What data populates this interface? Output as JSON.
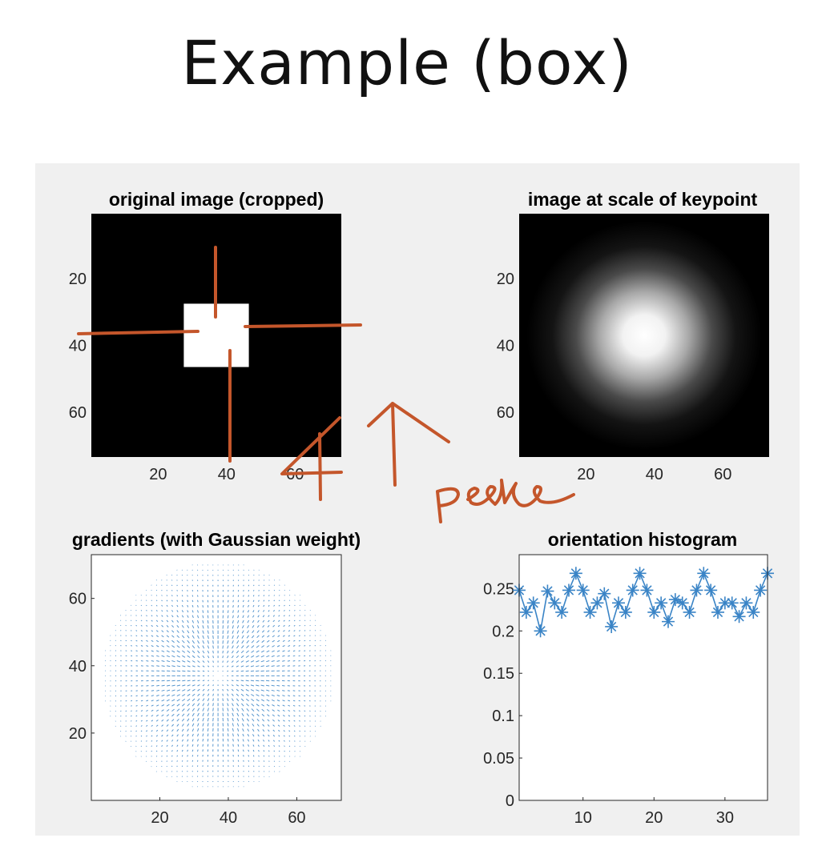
{
  "slide": {
    "title": "Example  (box)"
  },
  "annotation": {
    "handwritten_text": "peak"
  },
  "colors": {
    "panel_bg": "#f0f0f0",
    "axes_bg": "#ffffff",
    "series_blue": "#3a84c6",
    "ink_orange": "#c4562b"
  },
  "chart_data": [
    {
      "id": "original",
      "type": "heatmap",
      "title": "original image (cropped)",
      "colormap": "gray",
      "xlim": [
        0.5,
        73.5
      ],
      "ylim": [
        0.5,
        73.5
      ],
      "y_reversed": true,
      "xticks": [
        20,
        40,
        60
      ],
      "xtick_labels": [
        "20",
        "40",
        "60"
      ],
      "yticks": [
        20,
        40,
        60
      ],
      "ytick_labels": [
        "20",
        "40",
        "60"
      ],
      "background_value": 0,
      "box": {
        "x_range": [
          27.5,
          46.5
        ],
        "y_range": [
          27.5,
          46.5
        ],
        "value": 1
      }
    },
    {
      "id": "scaled",
      "type": "heatmap",
      "title": "image at scale of keypoint",
      "colormap": "gray",
      "xlim": [
        0.5,
        73.5
      ],
      "ylim": [
        0.5,
        73.5
      ],
      "y_reversed": true,
      "xticks": [
        20,
        40,
        60
      ],
      "xtick_labels": [
        "20",
        "40",
        "60"
      ],
      "yticks": [
        20,
        40,
        60
      ],
      "ytick_labels": [
        "20",
        "40",
        "60"
      ],
      "blob": {
        "center": [
          37,
          37
        ],
        "peak_value": 1
      }
    },
    {
      "id": "gradients",
      "type": "quiver",
      "title": "gradients (with Gaussian weight)",
      "xlim": [
        0,
        73
      ],
      "ylim": [
        0,
        73
      ],
      "xticks": [
        20,
        40,
        60
      ],
      "xtick_labels": [
        "20",
        "40",
        "60"
      ],
      "yticks": [
        20,
        40,
        60
      ],
      "ytick_labels": [
        "20",
        "40",
        "60"
      ],
      "center": [
        37,
        37
      ],
      "pattern": "radial"
    },
    {
      "id": "histogram",
      "type": "line",
      "title": "orientation histogram",
      "marker": "asterisk",
      "xlim": [
        1,
        36
      ],
      "ylim": [
        0,
        0.29
      ],
      "xticks": [
        10,
        20,
        30
      ],
      "xtick_labels": [
        "10",
        "20",
        "30"
      ],
      "yticks": [
        0,
        0.05,
        0.1,
        0.15,
        0.2,
        0.25
      ],
      "ytick_labels": [
        "0",
        "0.05",
        "0.1",
        "0.15",
        "0.2",
        "0.25"
      ],
      "x": [
        1,
        2,
        3,
        4,
        5,
        6,
        7,
        8,
        9,
        10,
        11,
        12,
        13,
        14,
        15,
        16,
        17,
        18,
        19,
        20,
        21,
        22,
        23,
        24,
        25,
        26,
        27,
        28,
        29,
        30,
        31,
        32,
        33,
        34,
        35,
        36
      ],
      "y": [
        0.248,
        0.222,
        0.233,
        0.2,
        0.247,
        0.233,
        0.222,
        0.248,
        0.268,
        0.248,
        0.222,
        0.233,
        0.244,
        0.205,
        0.233,
        0.222,
        0.248,
        0.268,
        0.248,
        0.222,
        0.233,
        0.211,
        0.237,
        0.233,
        0.222,
        0.248,
        0.268,
        0.248,
        0.222,
        0.233,
        0.233,
        0.217,
        0.233,
        0.222,
        0.248,
        0.268
      ]
    }
  ]
}
